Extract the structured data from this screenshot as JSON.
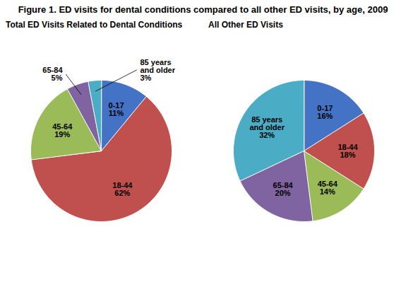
{
  "title": "Figure 1. ED visits for dental conditions compared to all other ED visits, by age, 2009",
  "chart_data": [
    {
      "type": "pie",
      "title": "Total ED Visits Related to Dental Conditions",
      "categories": [
        "0-17",
        "18-44",
        "45-64",
        "65-84",
        "85 years\nand older"
      ],
      "values": [
        11,
        62,
        19,
        5,
        3
      ],
      "value_labels": [
        "11%",
        "62%",
        "19%",
        "5%",
        "3%"
      ],
      "colors": [
        "#4472C4",
        "#C0504D",
        "#9BBB59",
        "#8064A2",
        "#4BACC6"
      ],
      "data_labels": true
    },
    {
      "type": "pie",
      "title": "All Other ED Visits",
      "categories": [
        "0-17",
        "18-44",
        "45-64",
        "65-84",
        "85 years\nand older"
      ],
      "values": [
        16,
        18,
        14,
        20,
        32
      ],
      "value_labels": [
        "16%",
        "18%",
        "14%",
        "20%",
        "32%"
      ],
      "colors": [
        "#4472C4",
        "#C0504D",
        "#9BBB59",
        "#8064A2",
        "#4BACC6"
      ],
      "data_labels": true
    }
  ]
}
